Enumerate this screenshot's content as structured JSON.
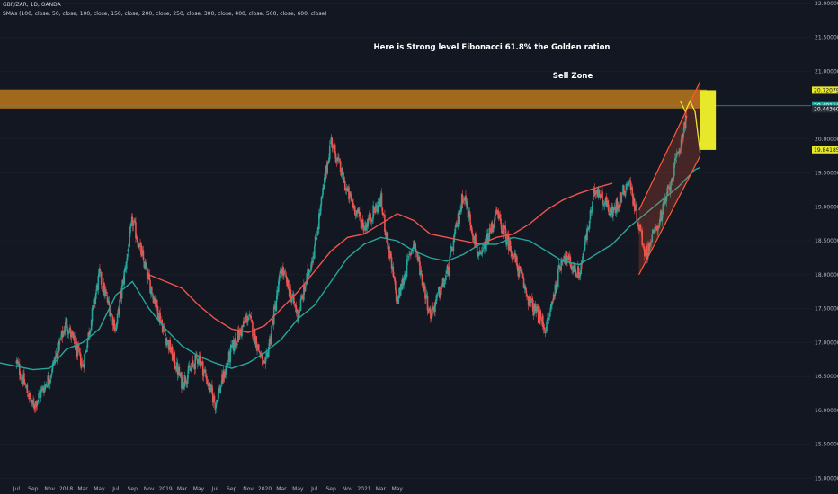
{
  "header": {
    "symbol_line": "GBP/ZAR, 1D, OANDA",
    "indicator_line": "SMAs (100, close, 50, close, 100, close, 150, close, 200, close, 250, close, 300, close, 400, close, 500, close, 600, close)"
  },
  "colors": {
    "background": "#131722",
    "candle_up": "#26a69a",
    "candle_down": "#ef5350",
    "sma_fast": "#26a69a",
    "sma_slow": "#ef5350",
    "zone_fill": "#c8801a",
    "yellow": "#e8e82a",
    "channel": "#ff5a36",
    "price_line": "#3f8d9b"
  },
  "chart_data": {
    "type": "candlestick",
    "title": "GBP/ZAR, 1D, OANDA",
    "ylim": [
      14.9,
      22.05
    ],
    "y_ticks": [
      "22.00000",
      "21.50000",
      "21.00000",
      "20.50000",
      "20.00000",
      "19.50000",
      "19.00000",
      "18.50000",
      "18.00000",
      "17.50000",
      "17.00000",
      "16.50000",
      "16.00000",
      "15.50000",
      "15.00000"
    ],
    "y_tick_values": [
      22.0,
      21.5,
      21.0,
      20.5,
      20.0,
      19.5,
      19.0,
      18.5,
      18.0,
      17.5,
      17.0,
      16.5,
      16.0,
      15.5,
      15.0
    ],
    "x_labels": [
      "Jul",
      "Sep",
      "Nov",
      "2018",
      "Mar",
      "May",
      "Jul",
      "Sep",
      "Nov",
      "2019",
      "Mar",
      "May",
      "Jul",
      "Sep",
      "Nov",
      "2020",
      "Mar",
      "May",
      "Jul",
      "Sep",
      "Nov",
      "2021",
      "Mar",
      "May"
    ],
    "x_range_months": [
      -1,
      48
    ],
    "price_anchors": [
      [
        0,
        16.7
      ],
      [
        1,
        16.05
      ],
      [
        2,
        16.5
      ],
      [
        3,
        17.3
      ],
      [
        4,
        16.65
      ],
      [
        5,
        18.0
      ],
      [
        6,
        17.2
      ],
      [
        7,
        18.8
      ],
      [
        8,
        17.9
      ],
      [
        9,
        17.1
      ],
      [
        10,
        16.4
      ],
      [
        11,
        16.8
      ],
      [
        12,
        16.1
      ],
      [
        13,
        16.9
      ],
      [
        14,
        17.4
      ],
      [
        15,
        16.6
      ],
      [
        16,
        18.1
      ],
      [
        17,
        17.4
      ],
      [
        18,
        18.4
      ],
      [
        19,
        20.0
      ],
      [
        20,
        19.2
      ],
      [
        21,
        18.7
      ],
      [
        22,
        19.1
      ],
      [
        23,
        17.6
      ],
      [
        24,
        18.5
      ],
      [
        25,
        17.4
      ],
      [
        26,
        18.0
      ],
      [
        27,
        19.2
      ],
      [
        28,
        18.2
      ],
      [
        29,
        18.9
      ],
      [
        30,
        18.3
      ],
      [
        31,
        17.6
      ],
      [
        32,
        17.2
      ],
      [
        33,
        18.3
      ],
      [
        34,
        18.0
      ],
      [
        35,
        19.3
      ],
      [
        36,
        18.9
      ],
      [
        37,
        19.4
      ],
      [
        38,
        18.3
      ],
      [
        39,
        18.9
      ],
      [
        40,
        19.8
      ],
      [
        40.5,
        20.4
      ]
    ],
    "sma_fast_points": [
      [
        -1,
        16.7
      ],
      [
        1,
        16.6
      ],
      [
        2,
        16.62
      ],
      [
        3,
        16.9
      ],
      [
        4,
        17.0
      ],
      [
        5,
        17.2
      ],
      [
        6,
        17.7
      ],
      [
        7,
        17.9
      ],
      [
        8,
        17.5
      ],
      [
        9,
        17.2
      ],
      [
        10,
        16.95
      ],
      [
        11,
        16.8
      ],
      [
        12,
        16.7
      ],
      [
        13,
        16.62
      ],
      [
        14,
        16.7
      ],
      [
        15,
        16.85
      ],
      [
        16,
        17.05
      ],
      [
        17,
        17.35
      ],
      [
        18,
        17.55
      ],
      [
        19,
        17.9
      ],
      [
        20,
        18.25
      ],
      [
        21,
        18.45
      ],
      [
        22,
        18.55
      ],
      [
        23,
        18.5
      ],
      [
        24,
        18.35
      ],
      [
        25,
        18.25
      ],
      [
        26,
        18.2
      ],
      [
        27,
        18.3
      ],
      [
        28,
        18.45
      ],
      [
        29,
        18.45
      ],
      [
        30,
        18.55
      ],
      [
        31,
        18.5
      ],
      [
        32,
        18.35
      ],
      [
        33,
        18.2
      ],
      [
        34,
        18.15
      ],
      [
        35,
        18.3
      ],
      [
        36,
        18.45
      ],
      [
        37,
        18.7
      ],
      [
        38,
        18.9
      ],
      [
        39,
        19.1
      ],
      [
        40,
        19.3
      ],
      [
        41,
        19.55
      ],
      [
        41.3,
        19.58
      ]
    ],
    "sma_slow_points": [
      [
        8,
        18.0
      ],
      [
        9,
        17.9
      ],
      [
        10,
        17.8
      ],
      [
        11,
        17.55
      ],
      [
        12,
        17.35
      ],
      [
        13,
        17.2
      ],
      [
        14,
        17.15
      ],
      [
        15,
        17.25
      ],
      [
        16,
        17.5
      ],
      [
        17,
        17.75
      ],
      [
        18,
        18.05
      ],
      [
        19,
        18.35
      ],
      [
        20,
        18.55
      ],
      [
        21,
        18.6
      ],
      [
        22,
        18.75
      ],
      [
        23,
        18.9
      ],
      [
        24,
        18.8
      ],
      [
        25,
        18.6
      ],
      [
        26,
        18.55
      ],
      [
        27,
        18.5
      ],
      [
        28,
        18.45
      ],
      [
        29,
        18.55
      ],
      [
        30,
        18.6
      ],
      [
        31,
        18.75
      ],
      [
        32,
        18.95
      ],
      [
        33,
        19.1
      ],
      [
        34,
        19.2
      ],
      [
        35,
        19.28
      ],
      [
        36,
        19.35
      ]
    ],
    "annotations": {
      "headline": "Here is Strong level   Fibonacci 61.8% the Golden ration",
      "sell_zone": "Sell Zone"
    },
    "horizontal_zone": [
      20.45,
      20.73
    ],
    "current_price": 20.49114,
    "price_labels": [
      {
        "text": "20.72079",
        "value": 20.72079,
        "color": "yellow"
      },
      {
        "text": "20.49114",
        "value": 20.49114,
        "color": "teal"
      },
      {
        "text": "20.44360",
        "value": 20.4436,
        "color": "dark"
      },
      {
        "text": "19.84185",
        "value": 19.84185,
        "color": "yellow"
      }
    ],
    "target_box": [
      19.84,
      20.72
    ],
    "channel": {
      "lower": [
        [
          37.6,
          18.0
        ],
        [
          41.3,
          19.75
        ]
      ],
      "upper": [
        [
          37.6,
          18.95
        ],
        [
          41.3,
          20.85
        ]
      ]
    },
    "projection": [
      [
        40.1,
        20.56
      ],
      [
        40.4,
        20.41
      ],
      [
        40.7,
        20.56
      ],
      [
        41.0,
        20.4
      ],
      [
        41.3,
        19.8
      ]
    ]
  }
}
